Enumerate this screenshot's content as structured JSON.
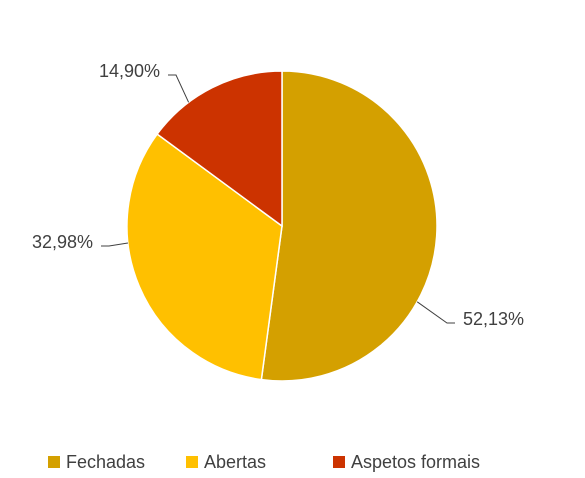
{
  "chart_data": {
    "type": "pie",
    "categories": [
      "Fechadas",
      "Abertas",
      "Aspetos formais"
    ],
    "values": [
      52.13,
      32.98,
      14.9
    ],
    "value_labels": [
      "52,13%",
      "32,98%",
      "14,90%"
    ],
    "colors": [
      "#D4A000",
      "#FFC000",
      "#CC3300"
    ],
    "legend": "bottom"
  }
}
